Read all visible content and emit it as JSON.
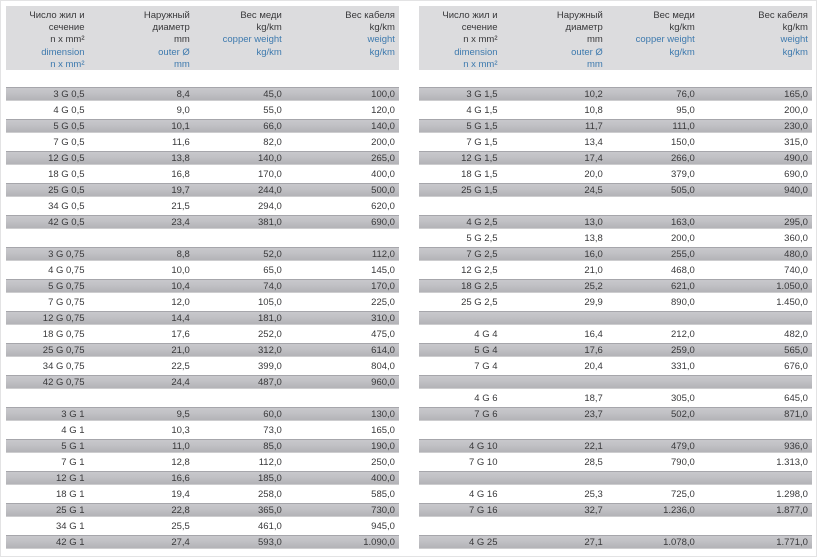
{
  "colors": {
    "header_bg": "#dcdcde",
    "gray_top": "#c9c9cd",
    "gray_bottom": "#b1b1b5",
    "text_primary": "#38383a",
    "accent_blue": "#3e7aae"
  },
  "header_cols": [
    {
      "name": "dimension",
      "ru": [
        "Число жил и",
        "сечение",
        "n x mm²"
      ],
      "en": [
        "dimension",
        "n x mm²"
      ]
    },
    {
      "name": "outer-diameter",
      "ru": [
        "Наружный",
        "диаметр",
        "mm"
      ],
      "en": [
        "outer Ø",
        "mm"
      ]
    },
    {
      "name": "copper-weight",
      "ru": [
        "Вес меди",
        "kg/km"
      ],
      "en": [
        "copper weight",
        "kg/km"
      ]
    },
    {
      "name": "cable-weight",
      "ru": [
        "Вес кабеля",
        "kg/km"
      ],
      "en": [
        "weight",
        "kg/km"
      ]
    }
  ],
  "tables": [
    {
      "name": "left",
      "rows": [
        [
          "3 G 0,5",
          "8,4",
          "45,0",
          "100,0"
        ],
        [
          "4 G 0,5",
          "9,0",
          "55,0",
          "120,0"
        ],
        [
          "5 G 0,5",
          "10,1",
          "66,0",
          "140,0"
        ],
        [
          "7 G 0,5",
          "11,6",
          "82,0",
          "200,0"
        ],
        [
          "12 G 0,5",
          "13,8",
          "140,0",
          "265,0"
        ],
        [
          "18 G 0,5",
          "16,8",
          "170,0",
          "400,0"
        ],
        [
          "25 G 0,5",
          "19,7",
          "244,0",
          "500,0"
        ],
        [
          "34 G 0,5",
          "21,5",
          "294,0",
          "620,0"
        ],
        [
          "42 G 0,5",
          "23,4",
          "381,0",
          "690,0"
        ],
        null,
        [
          "3 G 0,75",
          "8,8",
          "52,0",
          "112,0"
        ],
        [
          "4 G 0,75",
          "10,0",
          "65,0",
          "145,0"
        ],
        [
          "5 G 0,75",
          "10,4",
          "74,0",
          "170,0"
        ],
        [
          "7 G 0,75",
          "12,0",
          "105,0",
          "225,0"
        ],
        [
          "12 G 0,75",
          "14,4",
          "181,0",
          "310,0"
        ],
        [
          "18 G 0,75",
          "17,6",
          "252,0",
          "475,0"
        ],
        [
          "25 G 0,75",
          "21,0",
          "312,0",
          "614,0"
        ],
        [
          "34 G 0,75",
          "22,5",
          "399,0",
          "804,0"
        ],
        [
          "42 G 0,75",
          "24,4",
          "487,0",
          "960,0"
        ],
        null,
        [
          "3 G 1",
          "9,5",
          "60,0",
          "130,0"
        ],
        [
          "4 G 1",
          "10,3",
          "73,0",
          "165,0"
        ],
        [
          "5 G 1",
          "11,0",
          "85,0",
          "190,0"
        ],
        [
          "7 G 1",
          "12,8",
          "112,0",
          "250,0"
        ],
        [
          "12 G 1",
          "16,6",
          "185,0",
          "400,0"
        ],
        [
          "18 G 1",
          "19,4",
          "258,0",
          "585,0"
        ],
        [
          "25 G 1",
          "22,8",
          "365,0",
          "730,0"
        ],
        [
          "34 G 1",
          "25,5",
          "461,0",
          "945,0"
        ],
        [
          "42 G 1",
          "27,4",
          "593,0",
          "1.090,0"
        ]
      ]
    },
    {
      "name": "right",
      "rows": [
        [
          "3 G 1,5",
          "10,2",
          "76,0",
          "165,0"
        ],
        [
          "4 G 1,5",
          "10,8",
          "95,0",
          "200,0"
        ],
        [
          "5 G 1,5",
          "11,7",
          "111,0",
          "230,0"
        ],
        [
          "7 G 1,5",
          "13,4",
          "150,0",
          "315,0"
        ],
        [
          "12 G 1,5",
          "17,4",
          "266,0",
          "490,0"
        ],
        [
          "18 G 1,5",
          "20,0",
          "379,0",
          "690,0"
        ],
        [
          "25 G 1,5",
          "24,5",
          "505,0",
          "940,0"
        ],
        null,
        [
          "4 G 2,5",
          "13,0",
          "163,0",
          "295,0"
        ],
        [
          "5 G 2,5",
          "13,8",
          "200,0",
          "360,0"
        ],
        [
          "7 G 2,5",
          "16,0",
          "255,0",
          "480,0"
        ],
        [
          "12 G 2,5",
          "21,0",
          "468,0",
          "740,0"
        ],
        [
          "18 G 2,5",
          "25,2",
          "621,0",
          "1.050,0"
        ],
        [
          "25 G 2,5",
          "29,9",
          "890,0",
          "1.450,0"
        ],
        null,
        [
          "4 G 4",
          "16,4",
          "212,0",
          "482,0"
        ],
        [
          "5 G 4",
          "17,6",
          "259,0",
          "565,0"
        ],
        [
          "7 G 4",
          "20,4",
          "331,0",
          "676,0"
        ],
        null,
        [
          "4 G 6",
          "18,7",
          "305,0",
          "645,0"
        ],
        [
          "7 G 6",
          "23,7",
          "502,0",
          "871,0"
        ],
        null,
        [
          "4 G 10",
          "22,1",
          "479,0",
          "936,0"
        ],
        [
          "7 G 10",
          "28,5",
          "790,0",
          "1.313,0"
        ],
        null,
        [
          "4 G 16",
          "25,3",
          "725,0",
          "1.298,0"
        ],
        [
          "7 G 16",
          "32,7",
          "1.236,0",
          "1.877,0"
        ],
        null,
        [
          "4 G 25",
          "27,1",
          "1.078,0",
          "1.771,0"
        ]
      ]
    }
  ]
}
